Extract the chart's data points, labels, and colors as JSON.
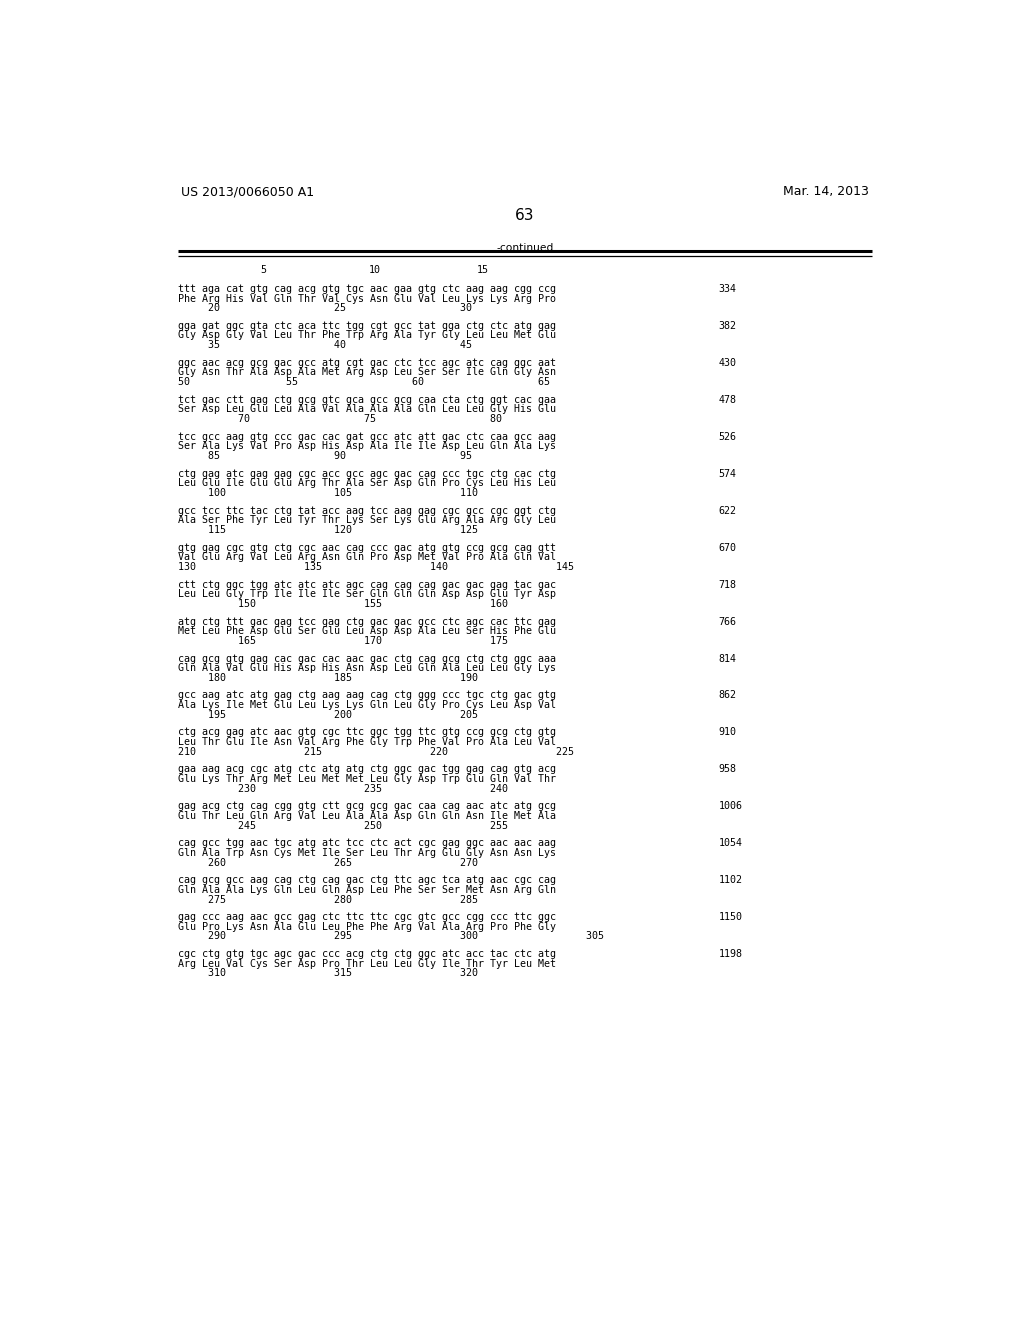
{
  "header_left": "US 2013/0066050 A1",
  "header_right": "Mar. 14, 2013",
  "page_number": "63",
  "continued_label": "-continued",
  "background_color": "#ffffff",
  "text_color": "#000000",
  "font_size_header": 9.0,
  "font_size_body": 7.2,
  "font_size_page": 11,
  "groups": [
    {
      "codon": "ttt aga cat gtg cag acg gtg tgc aac gaa gtg ctc aag aag cgg ccg",
      "amino": "Phe Arg His Val Gln Thr Val Cys Asn Glu Val Leu Lys Lys Arg Pro",
      "nums": "     20                   25                   30",
      "num_right": "334"
    },
    {
      "codon": "gga gat ggc gta ctc aca ttc tgg cgt gcc tat gga ctg ctc atg gag",
      "amino": "Gly Asp Gly Val Leu Thr Phe Trp Arg Ala Tyr Gly Leu Leu Met Glu",
      "nums": "     35                   40                   45",
      "num_right": "382"
    },
    {
      "codon": "ggc aac acg gcg gac gcc atg cgt gac ctc tcc agc atc cag ggc aat",
      "amino": "Gly Asn Thr Ala Asp Ala Met Arg Asp Leu Ser Ser Ile Gln Gly Asn",
      "nums": "50                55                   60                   65",
      "num_right": "430"
    },
    {
      "codon": "tct gac ctt gag ctg gcg gtc gca gcc gcg caa cta ctg ggt cac gaa",
      "amino": "Ser Asp Leu Glu Leu Ala Val Ala Ala Ala Gln Leu Leu Gly His Glu",
      "nums": "          70                   75                   80",
      "num_right": "478"
    },
    {
      "codon": "tcc gcc aag gtg ccc gac cac gat gcc atc att gac ctc caa gcc aag",
      "amino": "Ser Ala Lys Val Pro Asp His Asp Ala Ile Ile Asp Leu Gln Ala Lys",
      "nums": "     85                   90                   95",
      "num_right": "526"
    },
    {
      "codon": "ctg gag atc gag gag cgc acc gcc agc gac cag ccc tgc ctg cac ctg",
      "amino": "Leu Glu Ile Glu Glu Arg Thr Ala Ser Asp Gln Pro Cys Leu His Leu",
      "nums": "     100                  105                  110",
      "num_right": "574"
    },
    {
      "codon": "gcc tcc ttc tac ctg tat acc aag tcc aag gag cgc gcc cgc ggt ctg",
      "amino": "Ala Ser Phe Tyr Leu Tyr Thr Lys Ser Lys Glu Arg Ala Arg Gly Leu",
      "nums": "     115                  120                  125",
      "num_right": "622"
    },
    {
      "codon": "gtg gag cgc gtg ctg cgc aac cag ccc gac atg gtg ccg gcg cag gtt",
      "amino": "Val Glu Arg Val Leu Arg Asn Gln Pro Asp Met Val Pro Ala Gln Val",
      "nums": "130                  135                  140                  145",
      "num_right": "670"
    },
    {
      "codon": "ctt ctg ggc tgg atc atc atc agc cag cag cag gac gac gag tac gac",
      "amino": "Leu Leu Gly Trp Ile Ile Ile Ser Gln Gln Gln Asp Asp Glu Tyr Asp",
      "nums": "          150                  155                  160",
      "num_right": "718"
    },
    {
      "codon": "atg ctg ttt gac gag tcc gag ctg gac gac gcc ctc agc cac ttc gag",
      "amino": "Met Leu Phe Asp Glu Ser Glu Leu Asp Asp Ala Leu Ser His Phe Glu",
      "nums": "          165                  170                  175",
      "num_right": "766"
    },
    {
      "codon": "cag gcg gtg gag cac gac cac aac gac ctg cag gcg ctg ctg ggc aaa",
      "amino": "Gln Ala Val Glu His Asp His Asn Asp Leu Gln Ala Leu Leu Gly Lys",
      "nums": "     180                  185                  190",
      "num_right": "814"
    },
    {
      "codon": "gcc aag atc atg gag ctg aag aag cag ctg ggg ccc tgc ctg gac gtg",
      "amino": "Ala Lys Ile Met Glu Leu Lys Lys Gln Leu Gly Pro Cys Leu Asp Val",
      "nums": "     195                  200                  205",
      "num_right": "862"
    },
    {
      "codon": "ctg acg gag atc aac gtg cgc ttc ggc tgg ttc gtg ccg gcg ctg gtg",
      "amino": "Leu Thr Glu Ile Asn Val Arg Phe Gly Trp Phe Val Pro Ala Leu Val",
      "nums": "210                  215                  220                  225",
      "num_right": "910"
    },
    {
      "codon": "gaa aag acg cgc atg ctc atg atg ctg ggc gac tgg gag cag gtg acg",
      "amino": "Glu Lys Thr Arg Met Leu Met Met Leu Gly Asp Trp Glu Gln Val Thr",
      "nums": "          230                  235                  240",
      "num_right": "958"
    },
    {
      "codon": "gag acg ctg cag cgg gtg ctt gcg gcg gac caa cag aac atc atg gcg",
      "amino": "Glu Thr Leu Gln Arg Val Leu Ala Ala Asp Gln Gln Asn Ile Met Ala",
      "nums": "          245                  250                  255",
      "num_right": "1006"
    },
    {
      "codon": "cag gcc tgg aac tgc atg atc tcc ctc act cgc gag ggc aac aac aag",
      "amino": "Gln Ala Trp Asn Cys Met Ile Ser Leu Thr Arg Glu Gly Asn Asn Lys",
      "nums": "     260                  265                  270",
      "num_right": "1054"
    },
    {
      "codon": "cag gcg gcc aag cag ctg cag gac ctg ttc agc tca atg aac cgc cag",
      "amino": "Gln Ala Ala Lys Gln Leu Gln Asp Leu Phe Ser Ser Met Asn Arg Gln",
      "nums": "     275                  280                  285",
      "num_right": "1102"
    },
    {
      "codon": "gag ccc aag aac gcc gag ctc ttc ttc cgc gtc gcc cgg ccc ttc ggc",
      "amino": "Glu Pro Lys Asn Ala Glu Leu Phe Phe Arg Val Ala Arg Pro Phe Gly",
      "nums": "     290                  295                  300                  305",
      "num_right": "1150"
    },
    {
      "codon": "cgc ctg gtg tgc agc gac ccc acg ctg ctg ggc atc acc tac ctc atg",
      "amino": "Arg Leu Val Cys Ser Asp Pro Thr Leu Leu Gly Ile Thr Tyr Leu Met",
      "nums": "     310                  315                  320",
      "num_right": "1198"
    }
  ]
}
